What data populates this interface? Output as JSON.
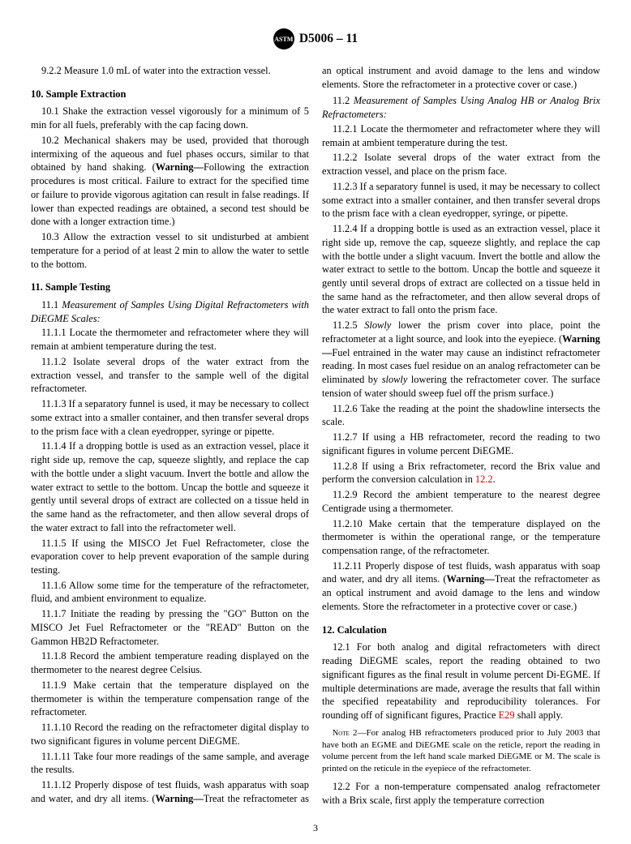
{
  "header": {
    "doc_id": "D5006 – 11",
    "logo_text": "ASTM"
  },
  "p_9_2_2": "9.2.2 Measure 1.0 mL of water into the extraction vessel.",
  "s10_head": "10. Sample Extraction",
  "p_10_1": "10.1 Shake the extraction vessel vigorously for a minimum of 5 min for all fuels, preferably with the cap facing down.",
  "p_10_2a": "10.2 Mechanical shakers may be used, provided that thorough intermixing of the aqueous and fuel phases occurs, similar to that obtained by hand shaking. (",
  "p_10_2b": "Following the extraction procedures is most critical. Failure to extract for the specified time or failure to provide vigorous agitation can result in false readings. If lower than expected readings are obtained, a second test should be done with a longer extraction time.)",
  "p_10_3": "10.3 Allow the extraction vessel to sit undisturbed at ambient temperature for a period of at least 2 min to allow the water to settle to the bottom.",
  "s11_head": "11. Sample Testing",
  "p_11_1_head_a": "11.1 ",
  "p_11_1_head_b": "Measurement of Samples Using Digital Refractometers with DiEGME Scales:",
  "p_11_1_1": "11.1.1 Locate the thermometer and refractometer where they will remain at ambient temperature during the test.",
  "p_11_1_2": "11.1.2 Isolate several drops of the water extract from the extraction vessel, and transfer to the sample well of the digital refractometer.",
  "p_11_1_3": "11.1.3 If a separatory funnel is used, it may be necessary to collect some extract into a smaller container, and then transfer several drops to the prism face with a clean eyedropper, syringe or pipette.",
  "p_11_1_4": "11.1.4 If a dropping bottle is used as an extraction vessel, place it right side up, remove the cap, squeeze slightly, and replace the cap with the bottle under a slight vacuum. Invert the bottle and allow the water extract to settle to the bottom. Uncap the bottle and squeeze it gently until several drops of extract are collected on a tissue held in the same hand as the refractometer, and then allow several drops of the water extract to fall into the refractometer well.",
  "p_11_1_5": "11.1.5 If using the MISCO Jet Fuel Refractometer, close the evaporation cover to help prevent evaporation of the sample during testing.",
  "p_11_1_6": "11.1.6 Allow some time for the temperature of the refractometer, fluid, and ambient environment to equalize.",
  "p_11_1_7": "11.1.7 Initiate the reading by pressing the \"GO\" Button on the MISCO Jet Fuel Refractometer or the \"READ\" Button on the Gammon HB2D Refractometer.",
  "p_11_1_8": "11.1.8 Record the ambient temperature reading displayed on the thermometer to the nearest degree Celsius.",
  "p_11_1_9": "11.1.9 Make certain that the temperature displayed on the thermometer is within the temperature compensation range of the refractometer.",
  "p_11_1_10": "11.1.10 Record the reading on the refractometer digital display to two significant figures in volume percent DiEGME.",
  "p_11_1_11": "11.1.11 Take four more readings of the same sample, and average the results.",
  "p_11_1_12a": "11.1.12 Properly dispose of test fluids, wash apparatus with soap and water, and dry all items. (",
  "p_11_1_12b": "Treat the refractometer as an optical instrument and avoid damage to the lens and window elements. Store the refractometer in a protective cover or case.)",
  "p_11_2_head_a": "11.2 ",
  "p_11_2_head_b": "Measurement of Samples Using Analog HB or Analog Brix Refractometers:",
  "p_11_2_1": "11.2.1 Locate the thermometer and refractometer where they will remain at ambient temperature during the test.",
  "p_11_2_2": "11.2.2 Isolate several drops of the water extract from the extraction vessel, and place on the prism face.",
  "p_11_2_3": "11.2.3 If a separatory funnel is used, it may be necessary to collect some extract into a smaller container, and then transfer several drops to the prism face with a clean eyedropper, syringe, or pipette.",
  "p_11_2_4": "11.2.4 If a dropping bottle is used as an extraction vessel, place it right side up, remove the cap, squeeze slightly, and replace the cap with the bottle under a slight vacuum. Invert the bottle and allow the water extract to settle to the bottom. Uncap the bottle and squeeze it gently until several drops of extract are collected on a tissue held in the same hand as the refractometer, and then allow several drops of the water extract to fall onto the prism face.",
  "p_11_2_5a": "11.2.5 ",
  "p_11_2_5b": " lower the prism cover into place, point the refractometer at a light source, and look into the eyepiece. (",
  "p_11_2_5c": "Fuel entrained in the water may cause an indistinct refractometer reading. In most cases fuel residue on an analog refractometer can be eliminated by ",
  "p_11_2_5d": " lowering the refractometer cover. The surface tension of water should sweep fuel off the prism surface.)",
  "p_11_2_6": "11.2.6 Take the reading at the point the shadowline intersects the scale.",
  "p_11_2_7": "11.2.7 If using a HB refractometer, record the reading to two significant figures in volume percent DiEGME.",
  "p_11_2_8a": "11.2.8 If using a Brix refractometer, record the Brix value and perform the conversion calculation in ",
  "p_11_2_8b": ".",
  "p_11_2_9": "11.2.9 Record the ambient temperature to the nearest degree Centigrade using a thermometer.",
  "p_11_2_10": "11.2.10 Make certain that the temperature displayed on the thermometer is within the operational range, or the temperature compensation range, of the refractometer.",
  "p_11_2_11a": "11.2.11 Properly dispose of test fluids, wash apparatus with soap and water, and dry all items. (",
  "p_11_2_11b": "Treat the refractometer as an optical instrument and avoid damage to the lens and window elements. Store the refractometer in a protective cover or case.)",
  "s12_head": "12. Calculation",
  "p_12_1a": "12.1 For both analog and digital refractometers with direct reading DiEGME scales, report the reading obtained to two significant figures as the final result in volume percent Di-EGME. If multiple determinations are made, average the results that fall within the specified repeatability and reproducibility tolerances. For rounding off of significant figures, Practice ",
  "p_12_1b": " shall apply.",
  "note2_label": "Note",
  "note2_text": " 2—For analog HB refractometers produced prior to July 2003 that have both an EGME and DiEGME scale on the reticle, report the reading in volume percent from the left hand scale marked DiEGME or M. The scale is printed on the reticule in the eyepiece of the refractometer.",
  "p_12_2": "12.2 For a non-temperature compensated analog refractometer with a Brix scale, first apply the temperature correction",
  "warning_label": "Warning—",
  "slowly_label": "Slowly",
  "slowly_lower": "slowly",
  "link_12_2": "12.2",
  "link_e29": "E29",
  "pagenum": "3"
}
